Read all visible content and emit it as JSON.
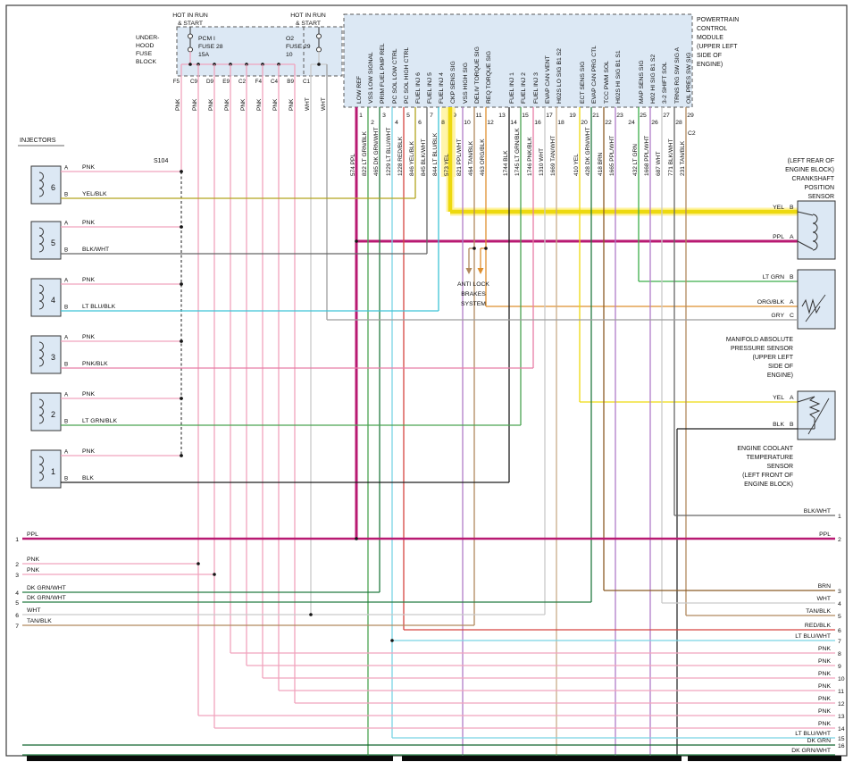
{
  "colors": {
    "PNK": "#f0a3bd",
    "WHT": "#c9c9c9",
    "GRY": "#9e9e9e",
    "PPL": "#b81a72",
    "YEL": "#edd90f",
    "YEL/BLK": "#b2a41d",
    "BLK/WHT": "#666666",
    "BLK": "#1d1d1d",
    "LT BLU/BLK": "#3ec4d6",
    "LT BLU/WHT": "#79d4e4",
    "PNK/BLK": "#e87da6",
    "LT GRN/BLK": "#4aa352",
    "LT GRN": "#3cae4a",
    "DK GRN/WHT": "#237b41",
    "DK GRN": "#10632d",
    "RED/BLK": "#d64541",
    "TAN/BLK": "#b1895e",
    "TAN/WHT": "#c8ac89",
    "ORG/BLK": "#de8f2e",
    "BRN": "#8b5c26",
    "PPL/WHT": "#b07cc8",
    "component_fill": "#dce8f4",
    "highlight": "#ffe94a"
  },
  "fuse_block": {
    "hot1_lines": [
      "HOT IN RUN",
      "& START"
    ],
    "hot2_lines": [
      "HOT IN RUN",
      "& START"
    ],
    "block_label_lines": [
      "UNDER-",
      "HOOD",
      "FUSE",
      "BLOCK"
    ],
    "fuse1_lines": [
      "PCM I",
      "FUSE 28",
      "15A"
    ],
    "fuse2_lines": [
      "O2",
      "FUSE 29",
      "10"
    ],
    "cavities": [
      "F5",
      "C9",
      "D9",
      "E9",
      "C2",
      "F4",
      "C4",
      "B9",
      "C1"
    ],
    "drop_colors": [
      "PNK",
      "PNK",
      "PNK",
      "PNK",
      "PNK",
      "PNK",
      "PNK",
      "PNK",
      "WHT",
      "WHT"
    ]
  },
  "pcm": {
    "title_lines": [
      "POWERTRAIN",
      "CONTROL",
      "MODULE",
      "(UPPER LEFT",
      "SIDE OF",
      "ENGINE)"
    ],
    "connector_label": "C2",
    "pins": [
      {
        "num": 1,
        "fn": "LOW REF",
        "wire": "574",
        "color": "PPL"
      },
      {
        "num": 2,
        "fn": "VSS LOW SIGNAL",
        "wire": "822",
        "color": "LT GRN/BLK"
      },
      {
        "num": 3,
        "fn": "PRIM FUEL PMP REL",
        "wire": "465",
        "color": "DK GRN/WHT"
      },
      {
        "num": 4,
        "fn": "PC SOL LOW CTRL",
        "wire": "1229",
        "color": "LT BLU/WHT"
      },
      {
        "num": 5,
        "fn": "PC SOL HIGH CTRL",
        "wire": "1228",
        "color": "RED/BLK"
      },
      {
        "num": 6,
        "fn": "FUEL INJ 6",
        "wire": "846",
        "color": "YEL/BLK"
      },
      {
        "num": 7,
        "fn": "FUEL INJ 5",
        "wire": "845",
        "color": "BLK/WHT"
      },
      {
        "num": 8,
        "fn": "FUEL INJ 4",
        "wire": "844",
        "color": "LT BLU/BLK"
      },
      {
        "num": 9,
        "fn": "CKP SENS SIG",
        "wire": "573",
        "color": "YEL"
      },
      {
        "num": 10,
        "fn": "VSS HIGH SIG",
        "wire": "821",
        "color": "PPL/WHT"
      },
      {
        "num": 11,
        "fn": "DELIV TORQUE SIG",
        "wire": "464",
        "color": "TAN/BLK"
      },
      {
        "num": 12,
        "fn": "REQ TORQUE SIG",
        "wire": "463",
        "color": "ORG/BLK"
      },
      {
        "num": 13
      },
      {
        "num": 14,
        "fn": "FUEL INJ 1",
        "wire": "1744",
        "color": "BLK"
      },
      {
        "num": 15,
        "fn": "FUEL INJ 2",
        "wire": "1745",
        "color": "LT GRN/BLK"
      },
      {
        "num": 16,
        "fn": "FUEL INJ 3",
        "wire": "1746",
        "color": "PNK/BLK"
      },
      {
        "num": 17,
        "fn": "EVAP CAN VENT",
        "wire": "1310",
        "color": "WHT"
      },
      {
        "num": 18,
        "fn": "H02S LO SIG B1 S2",
        "wire": "1669",
        "color": "TAN/WHT"
      },
      {
        "num": 19
      },
      {
        "num": 20,
        "fn": "ECT SENS SIG",
        "wire": "410",
        "color": "YEL"
      },
      {
        "num": 21,
        "fn": "EVAP CAN PRG CTL",
        "wire": "428",
        "color": "DK GRN/WHT"
      },
      {
        "num": 22,
        "fn": "TCC PWM SOL",
        "wire": "418",
        "color": "BRN"
      },
      {
        "num": 23,
        "fn": "H02S HI SIG B1 S1",
        "wire": "1665",
        "color": "PPL/WHT"
      },
      {
        "num": 24
      },
      {
        "num": 25,
        "fn": "MAP SENS SIG",
        "wire": "432",
        "color": "LT GRN"
      },
      {
        "num": 26,
        "fn": "H02 HI SIG B1 S2",
        "wire": "1668",
        "color": "PPL/WHT"
      },
      {
        "num": 27,
        "fn": "3-2 SHIFT SOL",
        "wire": "687",
        "color": "WHT"
      },
      {
        "num": 28,
        "fn": "TRNS RG SW SIG A",
        "wire": "771",
        "color": "BLK/WHT"
      },
      {
        "num": 29,
        "fn": "OIL PRES SW SIG",
        "wire": "231",
        "color": "TAN/BLK"
      }
    ]
  },
  "injectors": {
    "group_label": "INJECTORS",
    "splice_label": "S104",
    "pin_a_label": "A",
    "pin_b_label": "B",
    "items": [
      {
        "num": "6",
        "a_color": "PNK",
        "b_color": "YEL/BLK"
      },
      {
        "num": "5",
        "a_color": "PNK",
        "b_color": "BLK/WHT"
      },
      {
        "num": "4",
        "a_color": "PNK",
        "b_color": "LT BLU/BLK"
      },
      {
        "num": "3",
        "a_color": "PNK",
        "b_color": "PNK/BLK"
      },
      {
        "num": "2",
        "a_color": "PNK",
        "b_color": "LT GRN/BLK"
      },
      {
        "num": "1",
        "a_color": "PNK",
        "b_color": "BLK"
      }
    ]
  },
  "abs": {
    "label_lines": [
      "ANTI LOCK",
      "BRAKES",
      "SYSTEM"
    ]
  },
  "sensors": {
    "ckp": {
      "title_lines": [
        "(LEFT REAR OF",
        "ENGINE BLOCK)",
        "CRANKSHAFT",
        "POSITION",
        "SENSOR"
      ],
      "pins": [
        {
          "color": "YEL",
          "pin": "B"
        },
        {
          "color": "PPL",
          "pin": "A"
        }
      ]
    },
    "map": {
      "title_lines": [
        "MANIFOLD ABSOLUTE",
        "PRESSURE SENSOR",
        "(UPPER LEFT",
        "SIDE OF",
        "ENGINE)"
      ],
      "pins": [
        {
          "color": "LT GRN",
          "pin": "B"
        },
        {
          "color": "ORG/BLK",
          "pin": "A"
        },
        {
          "color": "GRY",
          "pin": "C"
        }
      ]
    },
    "ect": {
      "title_lines": [
        "ENGINE COOLANT",
        "TEMPERATURE",
        "SENSOR",
        "(LEFT FRONT OF",
        "ENGINE BLOCK)"
      ],
      "pins": [
        {
          "color": "YEL",
          "pin": "A"
        },
        {
          "color": "BLK",
          "pin": "B"
        }
      ]
    }
  },
  "left_exits": [
    {
      "num": "1",
      "color": "PPL"
    },
    {
      "num": "2",
      "color": "PNK"
    },
    {
      "num": "3",
      "color": "PNK"
    },
    {
      "num": "4",
      "color": "DK GRN/WHT"
    },
    {
      "num": "5",
      "color": "DK GRN/WHT"
    },
    {
      "num": "6",
      "color": "WHT"
    },
    {
      "num": "7",
      "color": "TAN/BLK"
    }
  ],
  "right_exits": [
    {
      "num": "1",
      "color": "BLK/WHT"
    },
    {
      "num": "2",
      "color": "PPL"
    },
    {
      "num": "3",
      "color": "BRN"
    },
    {
      "num": "4",
      "color": "WHT"
    },
    {
      "num": "5",
      "color": "TAN/BLK"
    },
    {
      "num": "6",
      "color": "RED/BLK"
    },
    {
      "num": "7",
      "color": "LT BLU/WHT"
    },
    {
      "num": "8",
      "color": "PNK"
    },
    {
      "num": "9",
      "color": "PNK"
    },
    {
      "num": "10",
      "color": "PNK"
    },
    {
      "num": "11",
      "color": "PNK"
    },
    {
      "num": "12",
      "color": "PNK"
    },
    {
      "num": "13",
      "color": "PNK"
    },
    {
      "num": "14",
      "color": "PNK"
    },
    {
      "num": "15",
      "color": "LT BLU/WHT"
    },
    {
      "num": "16",
      "color": "DK GRN"
    },
    {
      "num": "",
      "color": "DK GRN/WHT"
    }
  ]
}
